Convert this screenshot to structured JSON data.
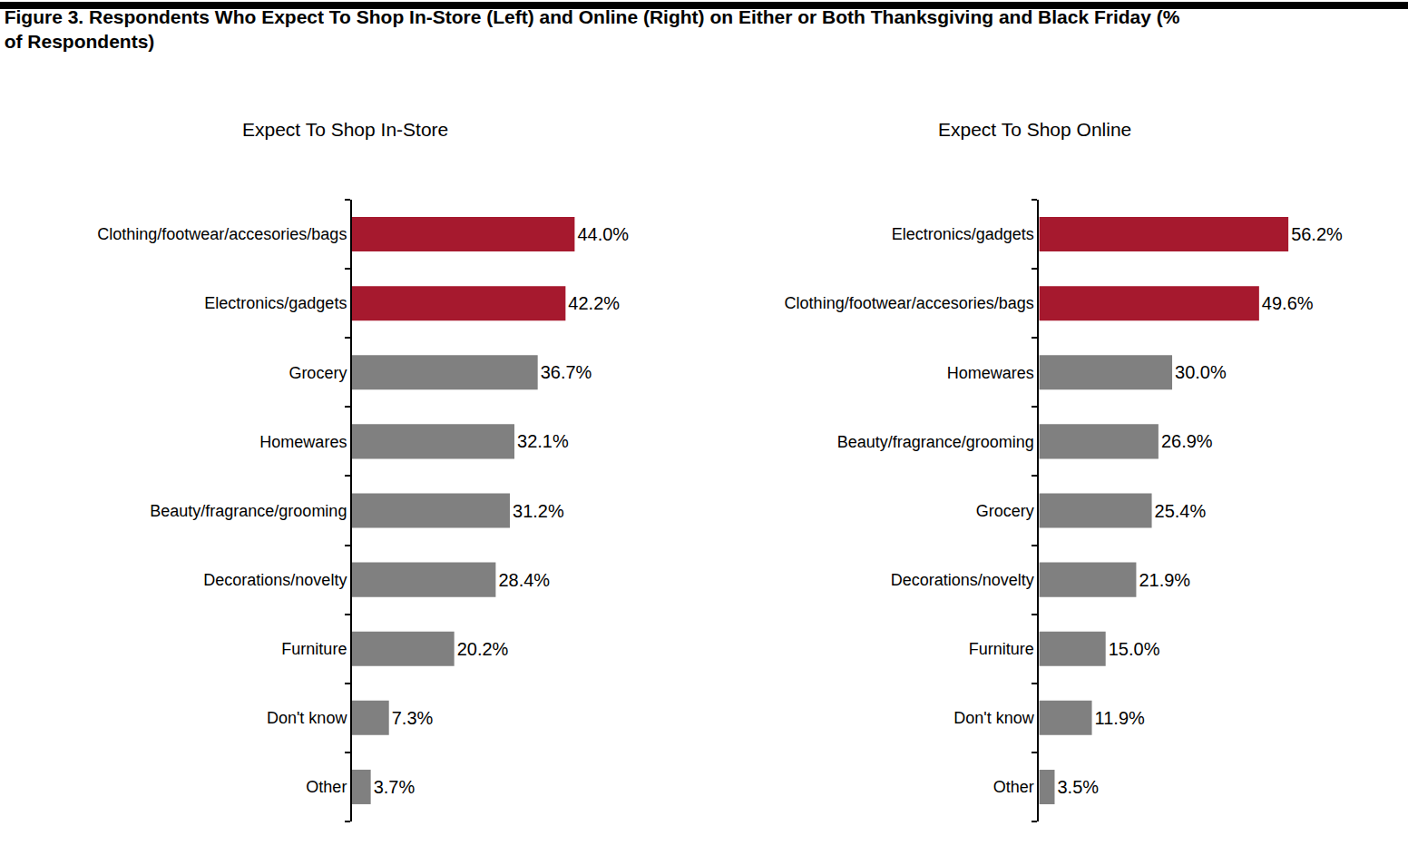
{
  "title": "Figure 3. Respondents Who Expect To Shop In-Store (Left) and Online (Right) on Either or Both Thanksgiving and Black Friday (%\nof Respondents)",
  "chart_data": [
    {
      "type": "bar",
      "title": "Expect To Shop In-Store",
      "orientation": "horizontal",
      "categories": [
        "Clothing/footwear/accesories/bags",
        "Electronics/gadgets",
        "Grocery",
        "Homewares",
        "Beauty/fragrance/grooming",
        "Decorations/novelty",
        "Furniture",
        "Don't know",
        "Other"
      ],
      "values": [
        44.0,
        42.2,
        36.7,
        32.1,
        31.2,
        28.4,
        20.2,
        7.3,
        3.7
      ],
      "value_labels": [
        "44.0%",
        "42.2%",
        "36.7%",
        "32.1%",
        "31.2%",
        "28.4%",
        "20.2%",
        "7.3%",
        "3.7%"
      ],
      "colors": [
        "#a6192e",
        "#a6192e",
        "#808080",
        "#808080",
        "#808080",
        "#808080",
        "#808080",
        "#808080",
        "#808080"
      ],
      "xlim": [
        0,
        64
      ],
      "data_labels": true,
      "tick_labels": "y",
      "grid": false
    },
    {
      "type": "bar",
      "title": "Expect To Shop Online",
      "orientation": "horizontal",
      "categories": [
        "Electronics/gadgets",
        "Clothing/footwear/accesories/bags",
        "Homewares",
        "Beauty/fragrance/grooming",
        "Grocery",
        "Decorations/novelty",
        "Furniture",
        "Don't know",
        "Other"
      ],
      "values": [
        56.2,
        49.6,
        30.0,
        26.9,
        25.4,
        21.9,
        15.0,
        11.9,
        3.5
      ],
      "value_labels": [
        "56.2%",
        "49.6%",
        "30.0%",
        "26.9%",
        "25.4%",
        "21.9%",
        "15.0%",
        "11.9%",
        "3.5%"
      ],
      "colors": [
        "#a6192e",
        "#a6192e",
        "#808080",
        "#808080",
        "#808080",
        "#808080",
        "#808080",
        "#808080",
        "#808080"
      ],
      "xlim": [
        0,
        80
      ],
      "data_labels": true,
      "tick_labels": "y",
      "grid": false
    }
  ]
}
